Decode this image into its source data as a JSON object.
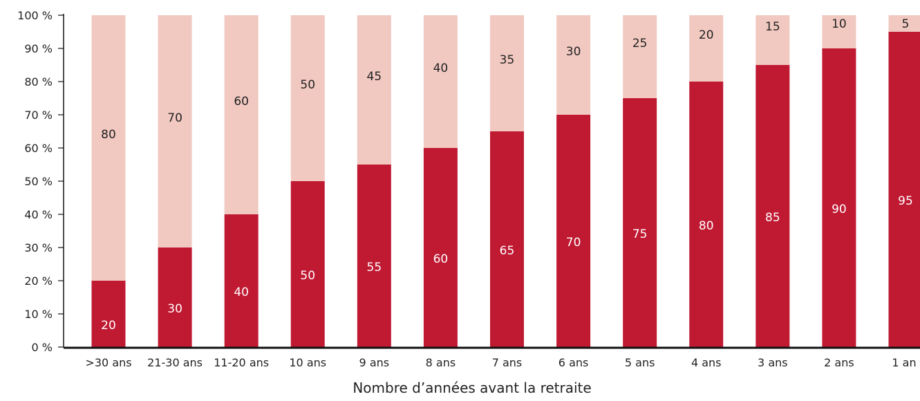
{
  "chart_data": {
    "type": "bar",
    "stacked": true,
    "categories": [
      ">30 ans",
      "21-30 ans",
      "11-20 ans",
      "10 ans",
      "9 ans",
      "8 ans",
      "7 ans",
      "6 ans",
      "5 ans",
      "4 ans",
      "3 ans",
      "2 ans",
      "1 an"
    ],
    "series": [
      {
        "values": [
          20,
          30,
          40,
          50,
          55,
          60,
          65,
          70,
          75,
          80,
          85,
          90,
          95
        ],
        "color": "#c01a33"
      },
      {
        "values": [
          80,
          70,
          60,
          50,
          45,
          40,
          35,
          30,
          25,
          20,
          15,
          10,
          5
        ],
        "color": "#f1c9c1"
      }
    ],
    "title": "",
    "xlabel": "Nombre d’années avant la retraite",
    "ylabel": "",
    "ylim": [
      0,
      100
    ],
    "yticks": [
      "0 %",
      "10 %",
      "20 %",
      "30 %",
      "40 %",
      "50 %",
      "60 %",
      "70 %",
      "80 %",
      "90 %",
      "100 %"
    ],
    "grid": false,
    "legend": "none"
  }
}
